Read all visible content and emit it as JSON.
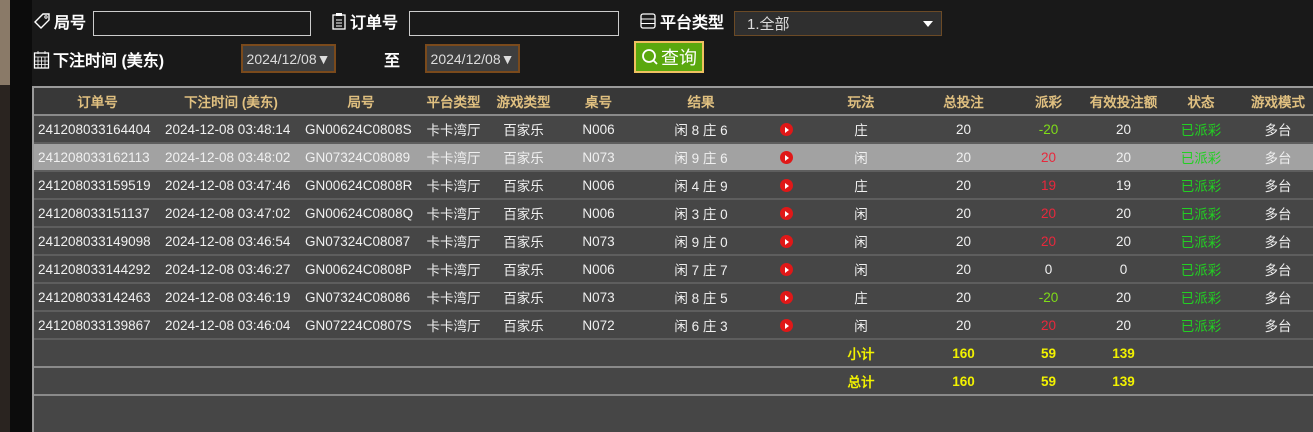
{
  "filters": {
    "round_label": "局号",
    "round_value": "",
    "order_label": "订单号",
    "order_value": "",
    "platform_label": "平台类型",
    "platform_value": "1.全部",
    "time_label": "下注时间 (美东)",
    "date_from": "2024/12/08▼",
    "to_label": "至",
    "date_to": "2024/12/08▼",
    "query_label": "查询"
  },
  "colors": {
    "accent_green": "#5aa80e",
    "payout_negative": "#7fdc18",
    "payout_positive": "#e8283c",
    "status": "#22d022",
    "summary": "#f2f200",
    "header_text": "#e0c080"
  },
  "columns": [
    "订单号",
    "下注时间 (美东)",
    "局号",
    "平台类型",
    "游戏类型",
    "桌号",
    "结果",
    "",
    "玩法",
    "总投注",
    "派彩",
    "有效投注额",
    "状态",
    "游戏模式"
  ],
  "rows": [
    {
      "order": "241208033164404",
      "time": "2024-12-08 03:48:14",
      "round": "GN00624C0808S",
      "platform": "卡卡湾厅",
      "game": "百家乐",
      "table": "N006",
      "result": "闲 8 庄 6",
      "play": "庄",
      "bet": "20",
      "payout": "-20",
      "valid": "20",
      "status": "已派彩",
      "mode": "多台"
    },
    {
      "order": "241208033162113",
      "time": "2024-12-08 03:48:02",
      "round": "GN07324C08089",
      "platform": "卡卡湾厅",
      "game": "百家乐",
      "table": "N073",
      "result": "闲 9 庄 6",
      "play": "闲",
      "bet": "20",
      "payout": "20",
      "valid": "20",
      "status": "已派彩",
      "mode": "多台",
      "selected": true
    },
    {
      "order": "241208033159519",
      "time": "2024-12-08 03:47:46",
      "round": "GN00624C0808R",
      "platform": "卡卡湾厅",
      "game": "百家乐",
      "table": "N006",
      "result": "闲 4 庄 9",
      "play": "庄",
      "bet": "20",
      "payout": "19",
      "valid": "19",
      "status": "已派彩",
      "mode": "多台"
    },
    {
      "order": "241208033151137",
      "time": "2024-12-08 03:47:02",
      "round": "GN00624C0808Q",
      "platform": "卡卡湾厅",
      "game": "百家乐",
      "table": "N006",
      "result": "闲 3 庄 0",
      "play": "闲",
      "bet": "20",
      "payout": "20",
      "valid": "20",
      "status": "已派彩",
      "mode": "多台"
    },
    {
      "order": "241208033149098",
      "time": "2024-12-08 03:46:54",
      "round": "GN07324C08087",
      "platform": "卡卡湾厅",
      "game": "百家乐",
      "table": "N073",
      "result": "闲 9 庄 0",
      "play": "闲",
      "bet": "20",
      "payout": "20",
      "valid": "20",
      "status": "已派彩",
      "mode": "多台"
    },
    {
      "order": "241208033144292",
      "time": "2024-12-08 03:46:27",
      "round": "GN00624C0808P",
      "platform": "卡卡湾厅",
      "game": "百家乐",
      "table": "N006",
      "result": "闲 7 庄 7",
      "play": "闲",
      "bet": "20",
      "payout": "0",
      "valid": "0",
      "status": "已派彩",
      "mode": "多台"
    },
    {
      "order": "241208033142463",
      "time": "2024-12-08 03:46:19",
      "round": "GN07324C08086",
      "platform": "卡卡湾厅",
      "game": "百家乐",
      "table": "N073",
      "result": "闲 8 庄 5",
      "play": "庄",
      "bet": "20",
      "payout": "-20",
      "valid": "20",
      "status": "已派彩",
      "mode": "多台"
    },
    {
      "order": "241208033139867",
      "time": "2024-12-08 03:46:04",
      "round": "GN07224C0807S",
      "platform": "卡卡湾厅",
      "game": "百家乐",
      "table": "N072",
      "result": "闲 6 庄 3",
      "play": "闲",
      "bet": "20",
      "payout": "20",
      "valid": "20",
      "status": "已派彩",
      "mode": "多台"
    }
  ],
  "subtotal": {
    "label": "小计",
    "bet": "160",
    "payout": "59",
    "valid": "139"
  },
  "total": {
    "label": "总计",
    "bet": "160",
    "payout": "59",
    "valid": "139"
  }
}
